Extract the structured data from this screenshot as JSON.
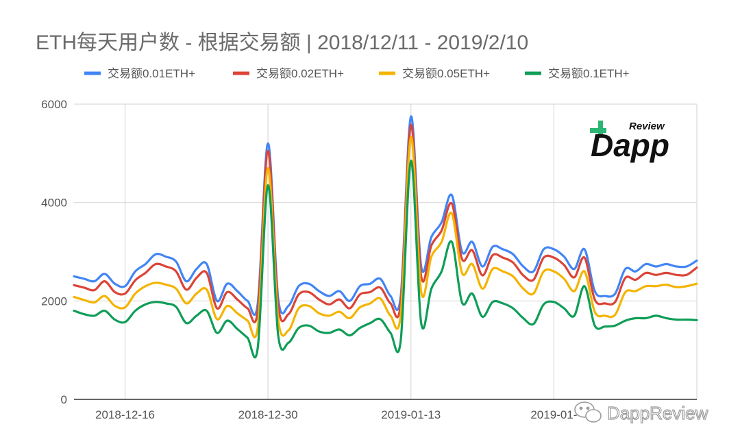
{
  "chart_data": {
    "type": "line",
    "title": "ETH每天用户数 - 根据交易额 | 2018/12/11 - 2019/2/10",
    "legend_position": "top",
    "grid": true,
    "ylim": [
      0,
      6000
    ],
    "yticks": [
      "0",
      "2000",
      "4000",
      "6000"
    ],
    "x": [
      "2018-12-11",
      "2018-12-12",
      "2018-12-13",
      "2018-12-14",
      "2018-12-15",
      "2018-12-16",
      "2018-12-17",
      "2018-12-18",
      "2018-12-19",
      "2018-12-20",
      "2018-12-21",
      "2018-12-22",
      "2018-12-23",
      "2018-12-24",
      "2018-12-25",
      "2018-12-26",
      "2018-12-27",
      "2018-12-28",
      "2018-12-29",
      "2018-12-30",
      "2018-12-31",
      "2019-01-01",
      "2019-01-02",
      "2019-01-03",
      "2019-01-04",
      "2019-01-05",
      "2019-01-06",
      "2019-01-07",
      "2019-01-08",
      "2019-01-09",
      "2019-01-10",
      "2019-01-11",
      "2019-01-12",
      "2019-01-13",
      "2019-01-14",
      "2019-01-15",
      "2019-01-16",
      "2019-01-17",
      "2019-01-18",
      "2019-01-19",
      "2019-01-20",
      "2019-01-21",
      "2019-01-22",
      "2019-01-23",
      "2019-01-24",
      "2019-01-25",
      "2019-01-26",
      "2019-01-27",
      "2019-01-28",
      "2019-01-29",
      "2019-01-30",
      "2019-01-31",
      "2019-02-01",
      "2019-02-02",
      "2019-02-03",
      "2019-02-04",
      "2019-02-05",
      "2019-02-06",
      "2019-02-07",
      "2019-02-08",
      "2019-02-09",
      "2019-02-10"
    ],
    "xticks": [
      "2018-12-16",
      "2018-12-30",
      "2019-01-13",
      "2019-01-"
    ],
    "series": [
      {
        "name": "交易额0.01ETH+",
        "color": "#4285f4",
        "values": [
          2500,
          2450,
          2400,
          2550,
          2350,
          2300,
          2600,
          2750,
          2950,
          2900,
          2800,
          2400,
          2650,
          2750,
          2000,
          2350,
          2200,
          2000,
          1950,
          5200,
          2050,
          1900,
          2300,
          2350,
          2200,
          2100,
          2200,
          2000,
          2300,
          2350,
          2450,
          2100,
          2100,
          5750,
          2700,
          3300,
          3600,
          4150,
          3000,
          3200,
          2700,
          3100,
          3050,
          2950,
          2700,
          2600,
          3050,
          3050,
          2900,
          2650,
          3050,
          2200,
          2100,
          2150,
          2650,
          2600,
          2750,
          2700,
          2750,
          2700,
          2700,
          2820
        ]
      },
      {
        "name": "交易额0.02ETH+",
        "color": "#db4437",
        "values": [
          2320,
          2270,
          2220,
          2400,
          2180,
          2150,
          2420,
          2570,
          2750,
          2700,
          2600,
          2230,
          2470,
          2570,
          1850,
          2180,
          2030,
          1850,
          1800,
          5050,
          1900,
          1730,
          2130,
          2180,
          2030,
          1930,
          2030,
          1850,
          2130,
          2180,
          2270,
          1950,
          1950,
          5580,
          2500,
          3130,
          3430,
          3980,
          2850,
          3030,
          2520,
          2930,
          2880,
          2780,
          2520,
          2430,
          2880,
          2880,
          2730,
          2480,
          2880,
          2030,
          1950,
          1980,
          2470,
          2430,
          2570,
          2530,
          2570,
          2530,
          2530,
          2680
        ]
      },
      {
        "name": "交易额0.05ETH+",
        "color": "#f4b400",
        "values": [
          2080,
          2020,
          1970,
          2100,
          1900,
          1870,
          2150,
          2300,
          2370,
          2330,
          2250,
          1950,
          2150,
          2230,
          1630,
          1900,
          1750,
          1600,
          1470,
          4700,
          1630,
          1400,
          1850,
          1900,
          1750,
          1700,
          1780,
          1650,
          1870,
          1950,
          2050,
          1700,
          1720,
          5330,
          2180,
          2900,
          3200,
          3780,
          2570,
          2750,
          2250,
          2650,
          2600,
          2500,
          2250,
          2150,
          2600,
          2600,
          2450,
          2200,
          2600,
          1780,
          1700,
          1720,
          2180,
          2200,
          2300,
          2300,
          2330,
          2280,
          2300,
          2350
        ]
      },
      {
        "name": "交易额0.1ETH+",
        "color": "#0f9d58",
        "values": [
          1800,
          1730,
          1700,
          1800,
          1620,
          1570,
          1800,
          1930,
          1980,
          1950,
          1880,
          1550,
          1700,
          1800,
          1350,
          1600,
          1430,
          1250,
          1050,
          4350,
          1300,
          1150,
          1450,
          1500,
          1380,
          1350,
          1420,
          1300,
          1450,
          1550,
          1630,
          1350,
          1200,
          4850,
          1550,
          2250,
          2600,
          3200,
          1970,
          2150,
          1680,
          1980,
          1950,
          1850,
          1650,
          1530,
          1930,
          1980,
          1850,
          1700,
          2300,
          1500,
          1480,
          1500,
          1600,
          1650,
          1650,
          1700,
          1650,
          1620,
          1620,
          1610
        ]
      }
    ]
  },
  "logo": {
    "sub": "Review",
    "main": "Dapp"
  },
  "watermark": {
    "text": "DappReview",
    "icon": "wechat-icon"
  }
}
